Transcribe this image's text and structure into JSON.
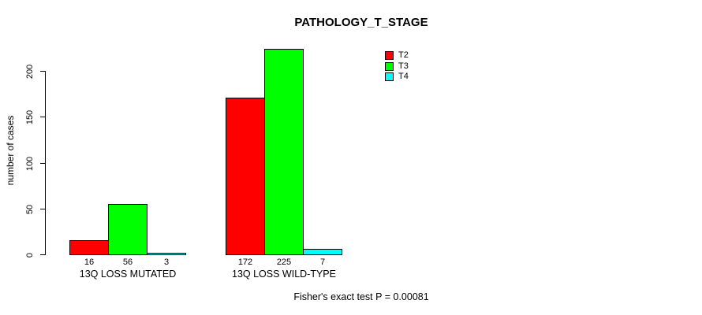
{
  "title": "PATHOLOGY_T_STAGE",
  "y_axis": {
    "label": "number of cases",
    "ticks": [
      0,
      50,
      100,
      150,
      200
    ]
  },
  "legend": {
    "items": [
      {
        "label": "T2",
        "color": "#ff0000"
      },
      {
        "label": "T3",
        "color": "#00ff00"
      },
      {
        "label": "T4",
        "color": "#00ffff"
      }
    ]
  },
  "footer": "Fisher's exact test P = 0.00081",
  "chart_data": {
    "type": "bar",
    "title": "PATHOLOGY_T_STAGE",
    "xlabel": "",
    "ylabel": "number of cases",
    "categories": [
      "13Q LOSS MUTATED",
      "13Q LOSS WILD-TYPE"
    ],
    "series": [
      {
        "name": "T2",
        "color": "#ff0000",
        "values": [
          16,
          172
        ]
      },
      {
        "name": "T3",
        "color": "#00ff00",
        "values": [
          56,
          225
        ]
      },
      {
        "name": "T4",
        "color": "#00ffff",
        "values": [
          3,
          7
        ]
      }
    ],
    "bar_value_labels": [
      [
        16,
        56,
        3
      ],
      [
        172,
        225,
        7
      ]
    ],
    "yticks": [
      0,
      50,
      100,
      150,
      200
    ],
    "ylim": [
      0,
      233
    ],
    "grid": false,
    "legend_position": "top-right",
    "annotation": "Fisher's exact test P = 0.00081"
  }
}
